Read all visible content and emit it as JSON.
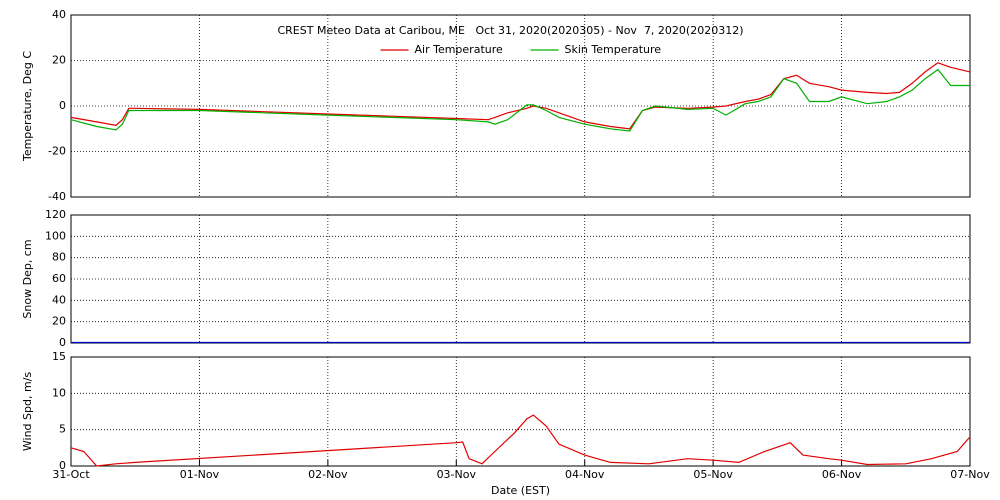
{
  "chart_data": [
    {
      "type": "line",
      "title": "CREST Meteo Data at Caribou, ME   Oct 31, 2020(2020305) - Nov  7, 2020(2020312)",
      "ylabel": "Temperature, Deg C",
      "legend": "upper center",
      "grid": true,
      "xlim": [
        0,
        7
      ],
      "ylim": [
        -40,
        40
      ],
      "yticks": [
        -40,
        -20,
        0,
        20,
        40
      ],
      "x": [
        0,
        0.2,
        0.35,
        0.4,
        0.45,
        0.5,
        1,
        1.5,
        2,
        2.5,
        3,
        3.25,
        3.3,
        3.4,
        3.55,
        3.6,
        3.7,
        3.8,
        4,
        4.2,
        4.35,
        4.45,
        4.55,
        4.8,
        5,
        5.1,
        5.25,
        5.35,
        5.45,
        5.55,
        5.65,
        5.75,
        5.9,
        6,
        6.2,
        6.35,
        6.45,
        6.55,
        6.65,
        6.75,
        6.85,
        7
      ],
      "series": [
        {
          "name": "Air Temperature",
          "color": "#e00000",
          "values": [
            -5,
            -7,
            -8.5,
            -6,
            -1,
            -1,
            -1.5,
            -2.5,
            -3.5,
            -4.5,
            -5.5,
            -6,
            -5,
            -3,
            -1,
            0,
            -1,
            -3,
            -7,
            -9,
            -10,
            -2,
            -0.5,
            -1,
            -0.5,
            0,
            2,
            3,
            5,
            12,
            13.5,
            10,
            8.5,
            7,
            6,
            5.5,
            6,
            10,
            15,
            19,
            17,
            15
          ]
        },
        {
          "name": "Skin Temperature",
          "color": "#00b000",
          "values": [
            -6,
            -9,
            -10.5,
            -8,
            -2,
            -2,
            -2,
            -3,
            -4,
            -5,
            -6,
            -7,
            -8,
            -6,
            0.5,
            0.5,
            -2,
            -5,
            -8,
            -10,
            -11,
            -2,
            0,
            -1.5,
            -1,
            -4,
            1,
            2,
            4,
            12,
            10,
            2,
            2,
            4,
            1,
            2,
            4,
            7,
            12,
            16,
            9,
            9
          ]
        }
      ]
    },
    {
      "type": "line",
      "ylabel": "Snow Dep, cm",
      "grid": true,
      "xlim": [
        0,
        7
      ],
      "ylim": [
        0,
        120
      ],
      "yticks": [
        0,
        20,
        40,
        60,
        80,
        100,
        120
      ],
      "x": [
        0,
        7
      ],
      "series": [
        {
          "color": "#0000c0",
          "values": [
            0.5,
            0.5
          ]
        }
      ]
    },
    {
      "type": "line",
      "ylabel": "Wind Spd, m/s",
      "xlabel": "Date (EST)",
      "grid": true,
      "xlim": [
        0,
        7
      ],
      "ylim": [
        0,
        15
      ],
      "yticks": [
        0,
        5,
        10,
        15
      ],
      "xticks": [
        {
          "value": 0,
          "label": "31-Oct"
        },
        {
          "value": 1,
          "label": "01-Nov"
        },
        {
          "value": 2,
          "label": "02-Nov"
        },
        {
          "value": 3,
          "label": "03-Nov"
        },
        {
          "value": 4,
          "label": "04-Nov"
        },
        {
          "value": 5,
          "label": "05-Nov"
        },
        {
          "value": 6,
          "label": "06-Nov"
        },
        {
          "value": 7,
          "label": "07-Nov"
        }
      ],
      "x": [
        0,
        0.1,
        0.2,
        0.35,
        0.5,
        3,
        3.05,
        3.1,
        3.2,
        3.3,
        3.45,
        3.55,
        3.6,
        3.7,
        3.8,
        4,
        4.2,
        4.5,
        4.8,
        5,
        5.2,
        5.4,
        5.6,
        5.7,
        5.9,
        6,
        6.2,
        6.5,
        6.7,
        6.9,
        7
      ],
      "series": [
        {
          "color": "#e00000",
          "values": [
            2.5,
            2,
            0,
            0.3,
            0.5,
            3.2,
            3.3,
            1,
            0.3,
            2,
            4.5,
            6.5,
            7,
            5.5,
            3,
            1.5,
            0.5,
            0.3,
            1,
            0.8,
            0.5,
            2,
            3.2,
            1.5,
            1,
            0.8,
            0.2,
            0.3,
            1,
            2,
            4
          ]
        }
      ]
    }
  ]
}
